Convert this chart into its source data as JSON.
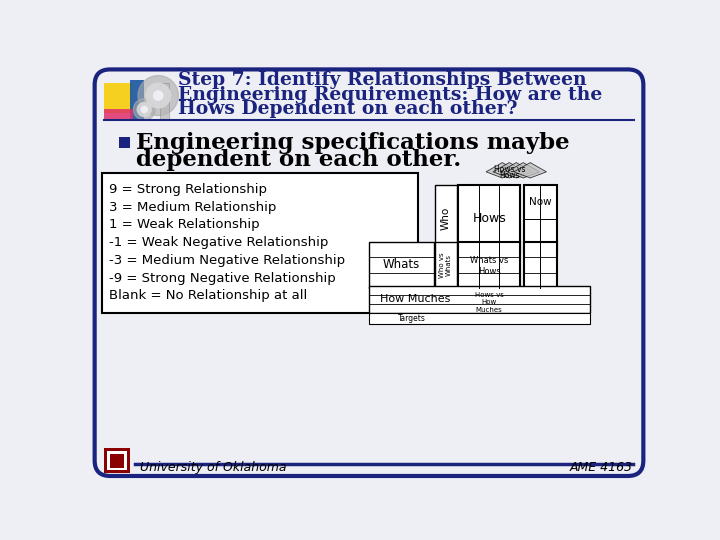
{
  "bg_color": "#eeeef5",
  "border_color": "#1a237e",
  "title_color": "#1a237e",
  "title_lines": [
    "Step 7: Identify Relationships Between",
    "Engineering Requirements: How are the",
    "Hows Dependent on each other?"
  ],
  "bullet_color": "#1a237e",
  "bullet_text_line1": "Engineering specifications maybe",
  "bullet_text_line2": "dependent on each other.",
  "legend_items": [
    "9 = Strong Relationship",
    "3 = Medium Relationship",
    "1 = Weak Relationship",
    "-1 = Weak Negative Relationship",
    "-3 = Medium Negative Relationship",
    "-9 = Strong Negative Relationship",
    "Blank = No Relationship at all"
  ],
  "footer_logo_color": "#8b0000",
  "footer_text": "University of Oklahoma",
  "footer_label": "AME 4163",
  "accent_yellow": "#f5d020",
  "accent_blue": "#1a56a0",
  "accent_pink": "#e0306a",
  "gear_color": "#aaaaaa",
  "separator_color": "#1a237e"
}
